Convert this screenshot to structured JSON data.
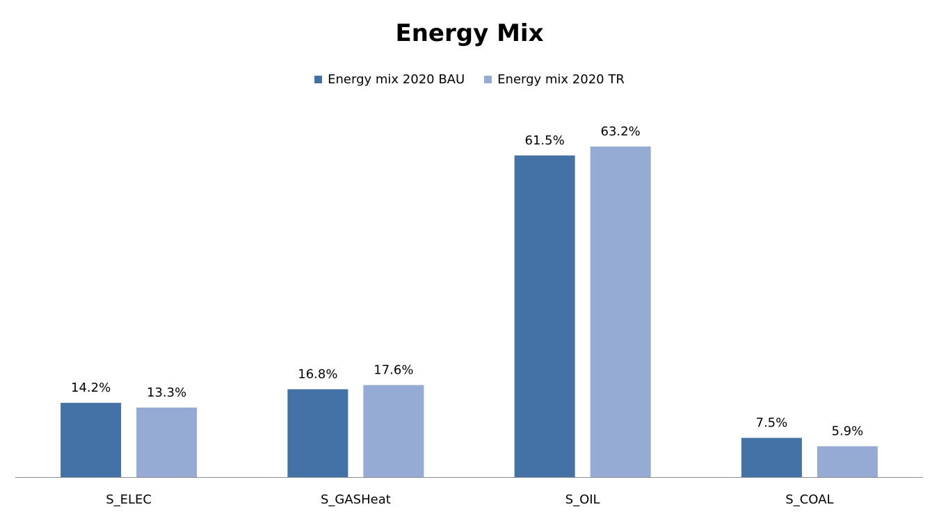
{
  "chart_data": {
    "type": "bar",
    "title": "Energy Mix",
    "categories": [
      "S_ELEC",
      "S_GASHeat",
      "S_OIL",
      "S_COAL"
    ],
    "series": [
      {
        "name": "Energy mix 2020 BAU",
        "color": "#4472a6",
        "values": [
          14.2,
          16.8,
          61.5,
          7.5
        ],
        "labels": [
          "14.2%",
          "16.8%",
          "61.5%",
          "7.5%"
        ]
      },
      {
        "name": "Energy mix 2020 TR",
        "color": "#95abd3",
        "values": [
          13.3,
          17.6,
          63.2,
          5.9
        ],
        "labels": [
          "13.3%",
          "17.6%",
          "63.2%",
          "5.9%"
        ]
      }
    ],
    "legend": "top-center",
    "grid": false,
    "ylim": [
      0,
      70
    ],
    "unit": "%"
  }
}
